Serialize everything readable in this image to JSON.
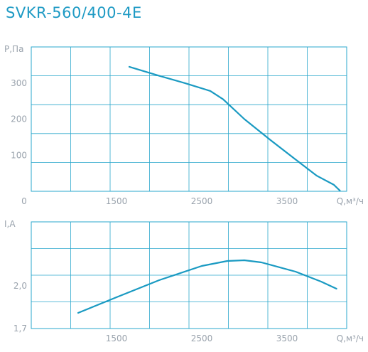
{
  "title": "SVKR-560/400-4E",
  "colors": {
    "curve": "#1a9ac2",
    "grid": "#2aa7cc"
  },
  "chart_data": [
    {
      "type": "line",
      "xlabel": "Q,м³/ч",
      "ylabel": "P,Па",
      "xlim": [
        500,
        4200
      ],
      "ylim": [
        0,
        400
      ],
      "x_ticks": [
        1500,
        2500,
        3500
      ],
      "x_zero_label": "0",
      "y_ticks": [
        100,
        200,
        300
      ],
      "grid": true,
      "series": [
        {
          "x": [
            1650,
            2000,
            2300,
            2600,
            2750,
            3000,
            3300,
            3600,
            3850,
            4050,
            4120
          ],
          "y": [
            345,
            320,
            300,
            278,
            255,
            200,
            143,
            88,
            43,
            18,
            2
          ]
        }
      ]
    },
    {
      "type": "line",
      "xlabel": "Q,м³/ч",
      "ylabel": "I,А",
      "xlim": [
        500,
        4200
      ],
      "ylim": [
        1.7,
        2.45
      ],
      "x_ticks": [
        1500,
        2500,
        3500
      ],
      "y_ticks": [
        1.7,
        2.0
      ],
      "y_tick_labels": [
        "1,7",
        "2,0"
      ],
      "grid": true,
      "series": [
        {
          "x": [
            1050,
            1500,
            2000,
            2500,
            2800,
            3000,
            3200,
            3600,
            3900,
            4080
          ],
          "y": [
            1.81,
            1.92,
            2.04,
            2.14,
            2.175,
            2.18,
            2.165,
            2.1,
            2.03,
            1.98
          ]
        }
      ]
    }
  ]
}
